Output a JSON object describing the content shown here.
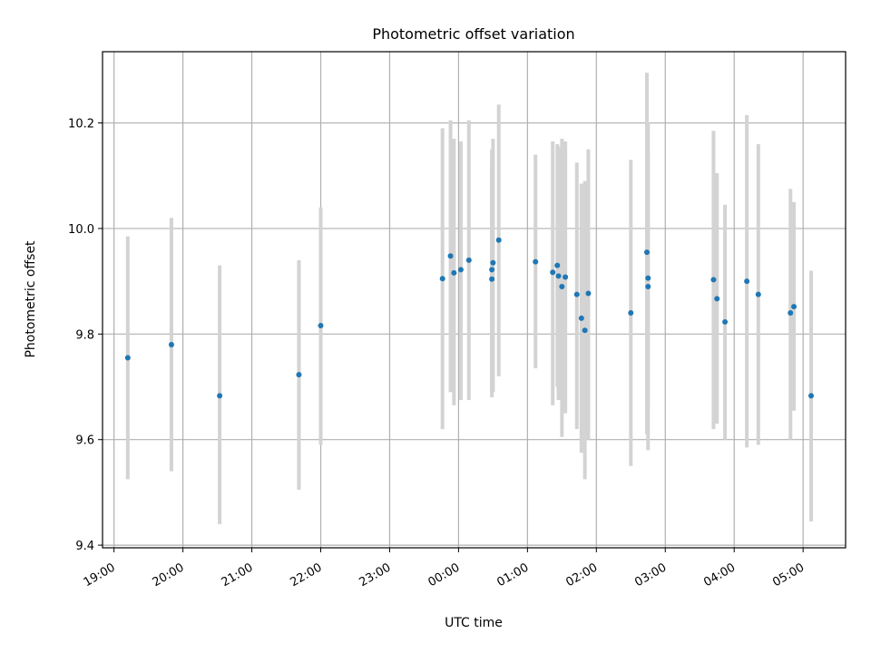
{
  "chart_data": {
    "type": "scatter",
    "title": "Photometric offset variation",
    "xlabel": "UTC time",
    "ylabel": "Photometric offset",
    "xlim": [
      "18:50",
      "05:37"
    ],
    "ylim": [
      9.395,
      10.335
    ],
    "grid": true,
    "x_ticks": [
      "19:00",
      "20:00",
      "21:00",
      "22:00",
      "23:00",
      "00:00",
      "01:00",
      "02:00",
      "03:00",
      "04:00",
      "05:00"
    ],
    "y_ticks": [
      "9.4",
      "9.6",
      "9.8",
      "10.0",
      "10.2"
    ],
    "colors": {
      "point": "#1f77b4",
      "errorbar": "#d3d3d3",
      "grid": "#b0b0b0"
    },
    "points": [
      {
        "t": "19:12",
        "y": 9.755,
        "lo": 9.525,
        "hi": 9.985
      },
      {
        "t": "19:50",
        "y": 9.78,
        "lo": 9.54,
        "hi": 10.02
      },
      {
        "t": "20:32",
        "y": 9.683,
        "lo": 9.44,
        "hi": 9.93
      },
      {
        "t": "21:41",
        "y": 9.723,
        "lo": 9.505,
        "hi": 9.94
      },
      {
        "t": "22:00",
        "y": 9.816,
        "lo": 9.59,
        "hi": 10.04
      },
      {
        "t": "23:46",
        "y": 9.905,
        "lo": 9.62,
        "hi": 10.19
      },
      {
        "t": "23:53",
        "y": 9.948,
        "lo": 9.69,
        "hi": 10.205
      },
      {
        "t": "23:56",
        "y": 9.916,
        "lo": 9.665,
        "hi": 10.17
      },
      {
        "t": "00:02",
        "y": 9.922,
        "lo": 9.675,
        "hi": 10.165
      },
      {
        "t": "00:09",
        "y": 9.94,
        "lo": 9.675,
        "hi": 10.205
      },
      {
        "t": "00:29",
        "y": 9.922,
        "lo": 9.68,
        "hi": 10.15
      },
      {
        "t": "00:29",
        "y": 9.904,
        "lo": 9.69,
        "hi": 10.12
      },
      {
        "t": "00:30",
        "y": 9.935,
        "lo": 9.69,
        "hi": 10.17
      },
      {
        "t": "00:35",
        "y": 9.978,
        "lo": 9.72,
        "hi": 10.235
      },
      {
        "t": "01:07",
        "y": 9.937,
        "lo": 9.735,
        "hi": 10.14
      },
      {
        "t": "01:22",
        "y": 9.917,
        "lo": 9.665,
        "hi": 10.165
      },
      {
        "t": "01:26",
        "y": 9.93,
        "lo": 9.7,
        "hi": 10.16
      },
      {
        "t": "01:27",
        "y": 9.91,
        "lo": 9.675,
        "hi": 10.155
      },
      {
        "t": "01:30",
        "y": 9.89,
        "lo": 9.605,
        "hi": 10.17
      },
      {
        "t": "01:33",
        "y": 9.908,
        "lo": 9.65,
        "hi": 10.165
      },
      {
        "t": "01:43",
        "y": 9.875,
        "lo": 9.62,
        "hi": 10.125
      },
      {
        "t": "01:47",
        "y": 9.83,
        "lo": 9.575,
        "hi": 10.085
      },
      {
        "t": "01:50",
        "y": 9.807,
        "lo": 9.525,
        "hi": 10.09
      },
      {
        "t": "01:53",
        "y": 9.877,
        "lo": 9.6,
        "hi": 10.15
      },
      {
        "t": "02:30",
        "y": 9.84,
        "lo": 9.55,
        "hi": 10.13
      },
      {
        "t": "02:44",
        "y": 9.955,
        "lo": 9.61,
        "hi": 10.295
      },
      {
        "t": "02:45",
        "y": 9.89,
        "lo": 9.58,
        "hi": 10.2
      },
      {
        "t": "02:45",
        "y": 9.906,
        "lo": 9.665,
        "hi": 10.145
      },
      {
        "t": "03:42",
        "y": 9.903,
        "lo": 9.62,
        "hi": 10.185
      },
      {
        "t": "03:45",
        "y": 9.867,
        "lo": 9.63,
        "hi": 10.105
      },
      {
        "t": "03:52",
        "y": 9.823,
        "lo": 9.6,
        "hi": 10.045
      },
      {
        "t": "04:11",
        "y": 9.9,
        "lo": 9.585,
        "hi": 10.215
      },
      {
        "t": "04:21",
        "y": 9.875,
        "lo": 9.59,
        "hi": 10.16
      },
      {
        "t": "04:49",
        "y": 9.84,
        "lo": 9.6,
        "hi": 10.075
      },
      {
        "t": "04:52",
        "y": 9.852,
        "lo": 9.655,
        "hi": 10.05
      },
      {
        "t": "05:07",
        "y": 9.683,
        "lo": 9.445,
        "hi": 9.92
      }
    ]
  }
}
